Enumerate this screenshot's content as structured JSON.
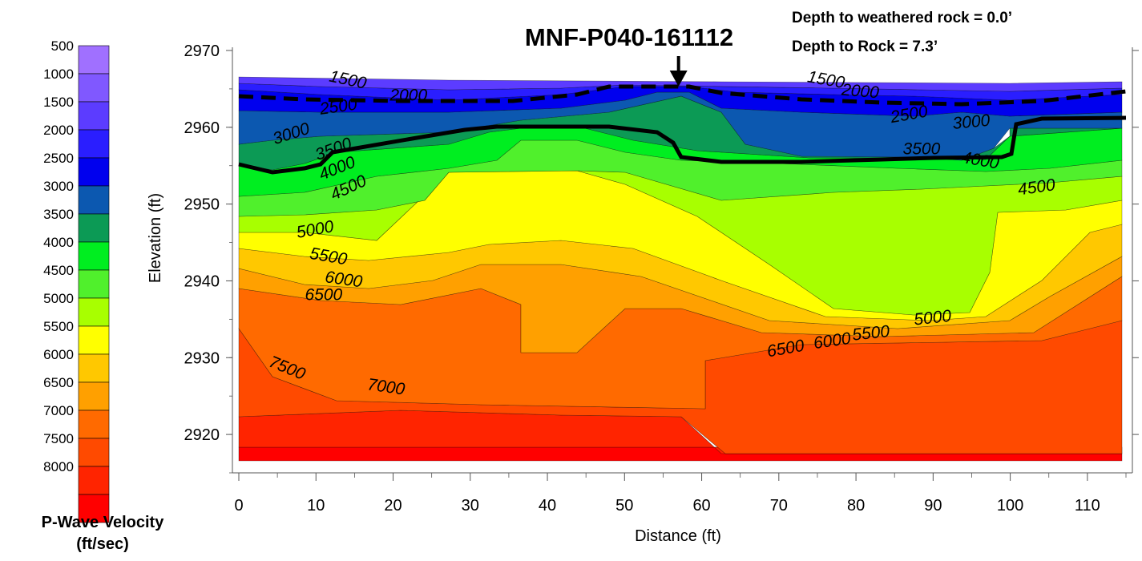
{
  "chart_data": {
    "type": "heatmap",
    "title": "MNF-P040-161112",
    "annotations": {
      "depth_weathered": "Depth to weathered rock = 0.0’",
      "depth_rock": "Depth to Rock = 7.3’"
    },
    "xlabel": "Distance (ft)",
    "ylabel": "Elevation (ft)",
    "xlim": [
      0,
      115
    ],
    "ylim": [
      2915,
      2970
    ],
    "x_ticks": [
      "0",
      "10",
      "20",
      "30",
      "40",
      "50",
      "60",
      "70",
      "80",
      "90",
      "100",
      "110"
    ],
    "y_ticks": [
      "2920",
      "2930",
      "2940",
      "2950",
      "2960",
      "2970"
    ],
    "marker_x": 57,
    "legend_title_line1": "P-Wave Velocity",
    "legend_title_line2": "(ft/sec)",
    "levels": [
      {
        "value": "500",
        "color": "#a070ff"
      },
      {
        "value": "1000",
        "color": "#8058ff"
      },
      {
        "value": "1500",
        "color": "#5c3cff"
      },
      {
        "value": "2000",
        "color": "#2a1eff"
      },
      {
        "value": "2500",
        "color": "#0000ee"
      },
      {
        "value": "3000",
        "color": "#0c58b0"
      },
      {
        "value": "3500",
        "color": "#0c9a55"
      },
      {
        "value": "4000",
        "color": "#00ee20"
      },
      {
        "value": "4500",
        "color": "#50f02c"
      },
      {
        "value": "5000",
        "color": "#a8ff00"
      },
      {
        "value": "5500",
        "color": "#ffff00"
      },
      {
        "value": "6000",
        "color": "#ffc800"
      },
      {
        "value": "6500",
        "color": "#ffa000"
      },
      {
        "value": "7000",
        "color": "#ff6a00"
      },
      {
        "value": "7500",
        "color": "#ff4a00"
      },
      {
        "value": "8000",
        "color": "#ff2400"
      },
      {
        "value": "",
        "color": "#ff0000"
      }
    ],
    "contour_labels": [
      {
        "text": "1500",
        "x": 28,
        "y": 2965.5,
        "angle": 12
      },
      {
        "text": "2000",
        "x": 44,
        "y": 2963.5,
        "angle": 0
      },
      {
        "text": "2500",
        "x": 26,
        "y": 2962,
        "angle": -8
      },
      {
        "text": "3000",
        "x": 14,
        "y": 2958.5,
        "angle": -18
      },
      {
        "text": "3500",
        "x": 25,
        "y": 2956.5,
        "angle": -20
      },
      {
        "text": "4000",
        "x": 26,
        "y": 2954,
        "angle": -22
      },
      {
        "text": "4500",
        "x": 29,
        "y": 2951.5,
        "angle": -25
      },
      {
        "text": "5000",
        "x": 20,
        "y": 2946,
        "angle": -10
      },
      {
        "text": "5500",
        "x": 23,
        "y": 2942.5,
        "angle": 10
      },
      {
        "text": "6000",
        "x": 27,
        "y": 2939.5,
        "angle": 8
      },
      {
        "text": "6500",
        "x": 22,
        "y": 2937.5,
        "angle": 0
      },
      {
        "text": "7500",
        "x": 12,
        "y": 2928,
        "angle": 22
      },
      {
        "text": "7000",
        "x": 38,
        "y": 2925.5,
        "angle": 8
      },
      {
        "text": "1500",
        "x": 152,
        "y": 2965.5,
        "angle": 10
      },
      {
        "text": "2000",
        "x": 161,
        "y": 2964,
        "angle": 5
      },
      {
        "text": "2500",
        "x": 174,
        "y": 2961,
        "angle": -10
      },
      {
        "text": "3000",
        "x": 190,
        "y": 2960,
        "angle": -5
      },
      {
        "text": "3500",
        "x": 177,
        "y": 2956.5,
        "angle": 0
      },
      {
        "text": "4000",
        "x": 192,
        "y": 2955,
        "angle": 10
      },
      {
        "text": "4500",
        "x": 207,
        "y": 2951.5,
        "angle": -8
      },
      {
        "text": "5000",
        "x": 180,
        "y": 2934.5,
        "angle": -6
      },
      {
        "text": "5500",
        "x": 164,
        "y": 2932.5,
        "angle": -6
      },
      {
        "text": "6000",
        "x": 154,
        "y": 2931.5,
        "angle": -8
      },
      {
        "text": "6500",
        "x": 142,
        "y": 2930.5,
        "angle": -10
      }
    ]
  }
}
